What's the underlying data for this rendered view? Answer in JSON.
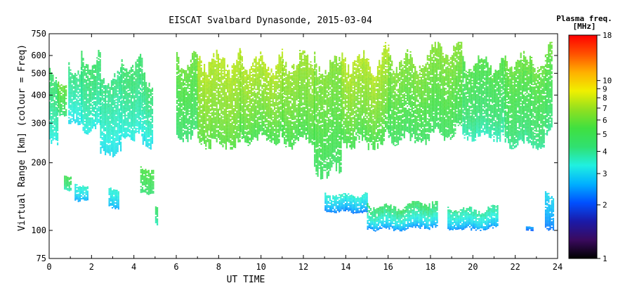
{
  "chart_data": {
    "type": "heatmap",
    "title": "EISCAT Svalbard Dynasonde, 2015-03-04",
    "xlabel": "UT TIME",
    "ylabel": "Virtual Range [km] (colour = Freq)",
    "x_ticks": [
      "0",
      "2",
      "4",
      "6",
      "8",
      "10",
      "12",
      "14",
      "16",
      "18",
      "20",
      "22",
      "24"
    ],
    "x_tick_values": [
      0,
      2,
      4,
      6,
      8,
      10,
      12,
      14,
      16,
      18,
      20,
      22,
      24
    ],
    "xlim": [
      0,
      24
    ],
    "y_scale": "log",
    "ylim": [
      75,
      750
    ],
    "y_ticks": [
      "75",
      "100",
      "200",
      "300",
      "400",
      "500",
      "600",
      "750"
    ],
    "y_tick_values": [
      75,
      100,
      200,
      300,
      400,
      500,
      600,
      750
    ],
    "colorbar": {
      "title_line1": "Plasma freq.",
      "title_line2": "[MHz]",
      "scale": "log",
      "range": [
        1,
        18
      ],
      "ticks": [
        "1",
        "2",
        "3",
        "4",
        "5",
        "6",
        "7",
        "8",
        "9",
        "10",
        "18"
      ],
      "tick_values": [
        1,
        2,
        3,
        4,
        5,
        6,
        7,
        8,
        9,
        10,
        18
      ],
      "colormap_stops": [
        "#000000",
        "#3a0a5e",
        "#1a1aa8",
        "#0050ff",
        "#00b0ff",
        "#20f0e0",
        "#30e070",
        "#40e040",
        "#90e020",
        "#f0f000",
        "#ffb000",
        "#ff5000",
        "#ff0000"
      ]
    },
    "regions": [
      {
        "t0": 0.0,
        "t1": 0.4,
        "ylo": 240,
        "yhi": 600,
        "flo": 3.2,
        "fhi": 4.5
      },
      {
        "t0": 0.4,
        "t1": 0.8,
        "ylo": 320,
        "yhi": 480,
        "flo": 4.0,
        "fhi": 6.0
      },
      {
        "t0": 0.9,
        "t1": 1.5,
        "ylo": 290,
        "yhi": 600,
        "flo": 3.0,
        "fhi": 4.2
      },
      {
        "t0": 1.5,
        "t1": 2.4,
        "ylo": 270,
        "yhi": 670,
        "flo": 3.2,
        "fhi": 4.5
      },
      {
        "t0": 2.4,
        "t1": 3.4,
        "ylo": 210,
        "yhi": 560,
        "flo": 3.0,
        "fhi": 4.2
      },
      {
        "t0": 3.4,
        "t1": 4.4,
        "ylo": 250,
        "yhi": 640,
        "flo": 3.2,
        "fhi": 4.5
      },
      {
        "t0": 4.4,
        "t1": 4.9,
        "ylo": 230,
        "yhi": 560,
        "flo": 3.0,
        "fhi": 4.5
      },
      {
        "t0": 6.0,
        "t1": 7.0,
        "ylo": 250,
        "yhi": 680,
        "flo": 4.2,
        "fhi": 6.0
      },
      {
        "t0": 7.0,
        "t1": 9.0,
        "ylo": 230,
        "yhi": 690,
        "flo": 5.5,
        "fhi": 7.5
      },
      {
        "t0": 9.0,
        "t1": 11.0,
        "ylo": 240,
        "yhi": 680,
        "flo": 5.0,
        "fhi": 7.5
      },
      {
        "t0": 11.0,
        "t1": 12.5,
        "ylo": 230,
        "yhi": 680,
        "flo": 5.0,
        "fhi": 7.0
      },
      {
        "t0": 12.5,
        "t1": 13.8,
        "ylo": 170,
        "yhi": 690,
        "flo": 4.5,
        "fhi": 6.5
      },
      {
        "t0": 13.8,
        "t1": 16.0,
        "ylo": 230,
        "yhi": 690,
        "flo": 5.0,
        "fhi": 7.5
      },
      {
        "t0": 16.0,
        "t1": 19.5,
        "ylo": 240,
        "yhi": 690,
        "flo": 4.5,
        "fhi": 6.5
      },
      {
        "t0": 19.5,
        "t1": 21.5,
        "ylo": 250,
        "yhi": 650,
        "flo": 3.5,
        "fhi": 5.5
      },
      {
        "t0": 21.5,
        "t1": 23.7,
        "ylo": 230,
        "yhi": 690,
        "flo": 3.8,
        "fhi": 6.0
      },
      {
        "t0": 0.7,
        "t1": 1.0,
        "ylo": 150,
        "yhi": 180,
        "flo": 3.5,
        "fhi": 5.0
      },
      {
        "t0": 1.2,
        "t1": 1.8,
        "ylo": 135,
        "yhi": 165,
        "flo": 2.5,
        "fhi": 3.5
      },
      {
        "t0": 2.8,
        "t1": 3.3,
        "ylo": 125,
        "yhi": 160,
        "flo": 2.5,
        "fhi": 3.5
      },
      {
        "t0": 4.3,
        "t1": 4.9,
        "ylo": 145,
        "yhi": 200,
        "flo": 4.2,
        "fhi": 5.5
      },
      {
        "t0": 5.0,
        "t1": 5.1,
        "ylo": 105,
        "yhi": 130,
        "flo": 3.5,
        "fhi": 4.5
      },
      {
        "t0": 13.0,
        "t1": 15.0,
        "ylo": 120,
        "yhi": 150,
        "flo": 2.2,
        "fhi": 3.5
      },
      {
        "t0": 15.0,
        "t1": 18.3,
        "ylo": 100,
        "yhi": 135,
        "flo": 2.3,
        "fhi": 4.5
      },
      {
        "t0": 18.8,
        "t1": 21.2,
        "ylo": 100,
        "yhi": 130,
        "flo": 2.3,
        "fhi": 4.0
      },
      {
        "t0": 22.5,
        "t1": 22.8,
        "ylo": 100,
        "yhi": 105,
        "flo": 2.0,
        "fhi": 2.5
      },
      {
        "t0": 23.4,
        "t1": 23.8,
        "ylo": 100,
        "yhi": 160,
        "flo": 2.2,
        "fhi": 3.0
      }
    ]
  }
}
